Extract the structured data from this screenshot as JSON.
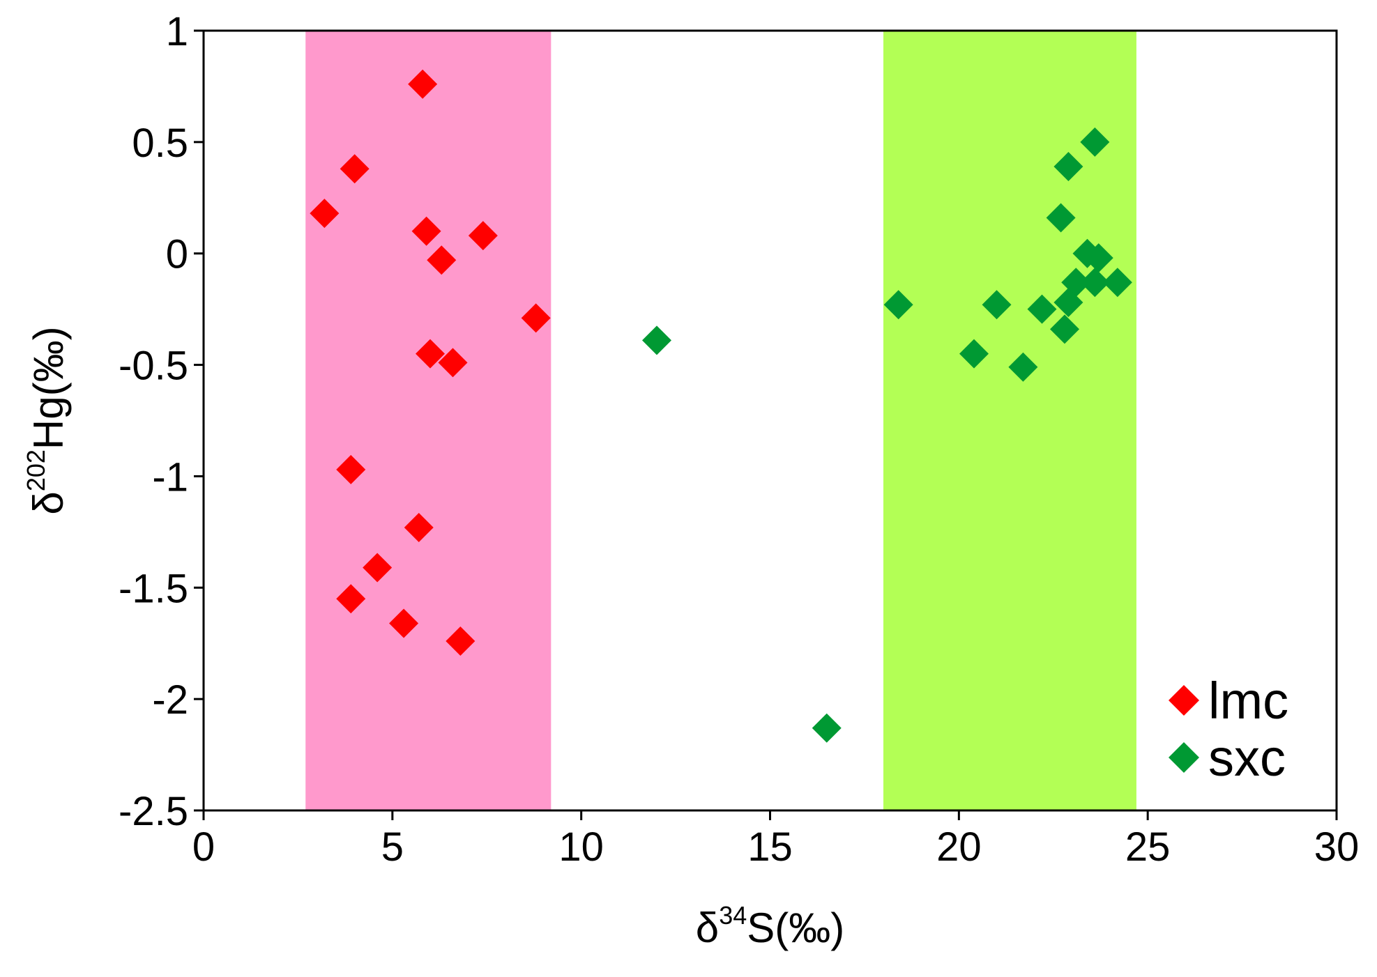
{
  "chart_data": {
    "type": "scatter",
    "xlabel": {
      "prefix": "δ",
      "sup": "34",
      "main": "S(‰)"
    },
    "ylabel": {
      "prefix": "δ",
      "sup": "202",
      "main": "Hg(‰)"
    },
    "xlim": [
      0,
      30
    ],
    "ylim": [
      -2.5,
      1
    ],
    "xticks": [
      0,
      5,
      10,
      15,
      20,
      25,
      30
    ],
    "xtick_labels": [
      "0",
      "5",
      "10",
      "15",
      "20",
      "25",
      "30"
    ],
    "yticks": [
      1,
      0.5,
      0,
      -0.5,
      -1,
      -1.5,
      -2,
      -2.5
    ],
    "ytick_labels": [
      "1",
      "0.5",
      "0",
      "-0.5",
      "-1",
      "-1.5",
      "-2",
      "-2.5"
    ],
    "grid": false,
    "legend_position": "bottom-right",
    "bands": [
      {
        "x0": 2.7,
        "x1": 9.2,
        "color": "#ff99cc"
      },
      {
        "x0": 18.0,
        "x1": 24.7,
        "color": "#b3ff55"
      }
    ],
    "series": [
      {
        "name": "lmc",
        "color": "#ff0000",
        "marker": "diamond",
        "points": [
          [
            5.8,
            0.76
          ],
          [
            4.0,
            0.38
          ],
          [
            3.2,
            0.18
          ],
          [
            5.9,
            0.1
          ],
          [
            7.4,
            0.08
          ],
          [
            6.3,
            -0.03
          ],
          [
            8.8,
            -0.29
          ],
          [
            6.0,
            -0.45
          ],
          [
            6.6,
            -0.49
          ],
          [
            3.9,
            -0.97
          ],
          [
            5.7,
            -1.23
          ],
          [
            4.6,
            -1.41
          ],
          [
            3.9,
            -1.55
          ],
          [
            5.3,
            -1.66
          ],
          [
            6.8,
            -1.74
          ]
        ]
      },
      {
        "name": "sxc",
        "color": "#009933",
        "marker": "diamond",
        "points": [
          [
            23.6,
            0.5
          ],
          [
            22.9,
            0.39
          ],
          [
            22.7,
            0.16
          ],
          [
            23.4,
            0.0
          ],
          [
            23.7,
            -0.02
          ],
          [
            23.1,
            -0.13
          ],
          [
            23.6,
            -0.13
          ],
          [
            24.2,
            -0.13
          ],
          [
            22.9,
            -0.22
          ],
          [
            22.2,
            -0.25
          ],
          [
            22.8,
            -0.34
          ],
          [
            18.4,
            -0.23
          ],
          [
            21.0,
            -0.23
          ],
          [
            20.4,
            -0.45
          ],
          [
            21.7,
            -0.51
          ],
          [
            12.0,
            -0.39
          ],
          [
            16.5,
            -2.13
          ]
        ]
      }
    ]
  }
}
